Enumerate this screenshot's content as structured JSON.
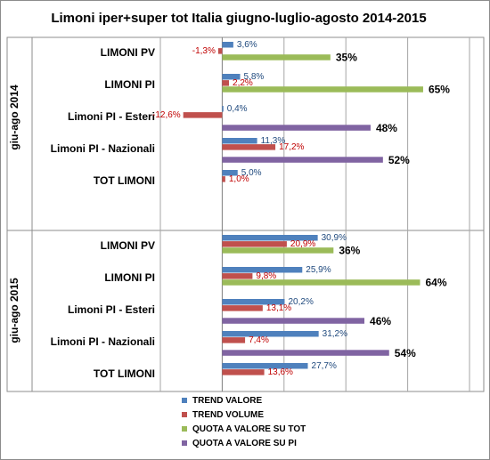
{
  "chart_data": {
    "type": "bar",
    "orientation": "horizontal",
    "title": "Limoni iper+super tot Italia giugno-luglio-agosto 2014-2015",
    "xlim": [
      -20,
      80
    ],
    "grid": true,
    "legend_position": "bottom-left",
    "series": [
      {
        "name": "TREND VALORE",
        "color": "#4F81BD",
        "label_color": "#1F497D"
      },
      {
        "name": "TREND VOLUME",
        "color": "#C0504D",
        "label_color": "#C00000"
      },
      {
        "name": "QUOTA A VALORE SU TOT",
        "color": "#9BBB59",
        "label_color": "#000000"
      },
      {
        "name": "QUOTA A VALORE SU PI",
        "color": "#8064A2",
        "label_color": "#000000"
      }
    ],
    "groups": [
      {
        "label": "giu-ago 2014",
        "categories": [
          {
            "name": "LIMONI PV",
            "values": [
              3.6,
              -1.3,
              35,
              null
            ],
            "labels": [
              "3,6%",
              "-1,3%",
              "35%",
              ""
            ]
          },
          {
            "name": "LIMONI PI",
            "values": [
              5.8,
              2.2,
              65,
              null
            ],
            "labels": [
              "5,8%",
              "2,2%",
              "65%",
              ""
            ]
          },
          {
            "name": "Limoni PI - Esteri",
            "values": [
              0.4,
              -12.6,
              null,
              48
            ],
            "labels": [
              "0,4%",
              "-12,6%",
              "",
              "48%"
            ]
          },
          {
            "name": "Limoni PI - Nazionali",
            "values": [
              11.3,
              17.2,
              null,
              52
            ],
            "labels": [
              "11,3%",
              "17,2%",
              "",
              "52%"
            ]
          },
          {
            "name": "TOT LIMONI",
            "values": [
              5.0,
              1.0,
              null,
              null
            ],
            "labels": [
              "5,0%",
              "1,0%",
              "",
              ""
            ]
          }
        ]
      },
      {
        "label": "giu-ago 2015",
        "categories": [
          {
            "name": "LIMONI PV",
            "values": [
              30.9,
              20.9,
              36,
              null
            ],
            "labels": [
              "30,9%",
              "20,9%",
              "36%",
              ""
            ]
          },
          {
            "name": "LIMONI PI",
            "values": [
              25.9,
              9.8,
              64,
              null
            ],
            "labels": [
              "25,9%",
              "9,8%",
              "64%",
              ""
            ]
          },
          {
            "name": "Limoni PI - Esteri",
            "values": [
              20.2,
              13.1,
              null,
              46
            ],
            "labels": [
              "20,2%",
              "13,1%",
              "",
              "46%"
            ]
          },
          {
            "name": "Limoni PI - Nazionali",
            "values": [
              31.2,
              7.4,
              null,
              54
            ],
            "labels": [
              "31,2%",
              "7,4%",
              "",
              "54%"
            ]
          },
          {
            "name": "TOT LIMONI",
            "values": [
              27.7,
              13.6,
              null,
              null
            ],
            "labels": [
              "27,7%",
              "13,6%",
              "",
              ""
            ]
          }
        ]
      }
    ]
  }
}
